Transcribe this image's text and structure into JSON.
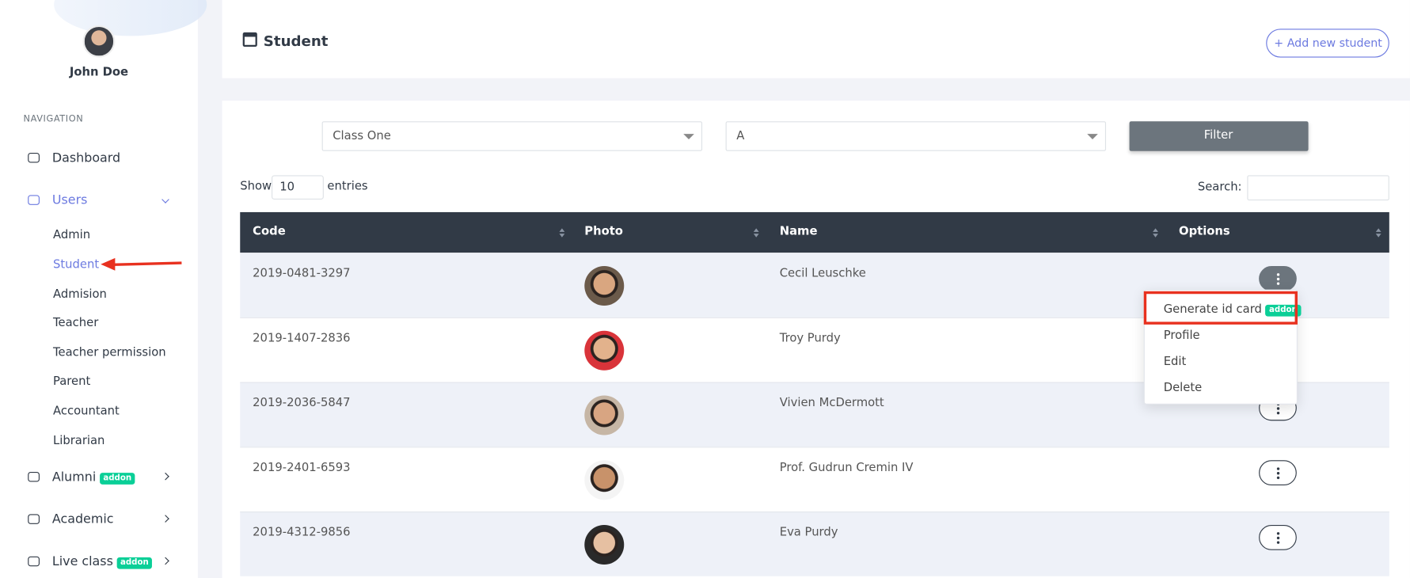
{
  "user": {
    "name": "John Doe"
  },
  "navigation": {
    "heading": "NAVIGATION",
    "items": [
      {
        "label": "Dashboard"
      },
      {
        "label": "Users",
        "children": [
          "Admin",
          "Student",
          "Admision",
          "Teacher",
          "Teacher permission",
          "Parent",
          "Accountant",
          "Librarian"
        ]
      },
      {
        "label": "Alumni",
        "badge": "addon"
      },
      {
        "label": "Academic"
      },
      {
        "label": "Live class",
        "badge": "addon"
      }
    ]
  },
  "header": {
    "title": "Student",
    "action": "+ Add new student"
  },
  "filters": {
    "class": "Class One",
    "section": "A",
    "button": "Filter"
  },
  "table": {
    "show": "Show",
    "page_size": "10",
    "entries": "entries",
    "search": "Search:",
    "columns": [
      "Code",
      "Photo",
      "Name",
      "Options"
    ],
    "rows": [
      [
        "2019-0481-3297",
        "Cecil Leuschke"
      ],
      [
        "2019-1407-2836",
        "Troy Purdy"
      ],
      [
        "2019-2036-5847",
        "Vivien McDermott"
      ],
      [
        "2019-2401-6593",
        "Prof. Gudrun Cremin IV"
      ],
      [
        "2019-4312-9856",
        "Eva Purdy"
      ]
    ]
  },
  "dropdown": {
    "items": [
      "Generate id card",
      "Profile",
      "Edit",
      "Delete"
    ],
    "badge": "addon"
  }
}
